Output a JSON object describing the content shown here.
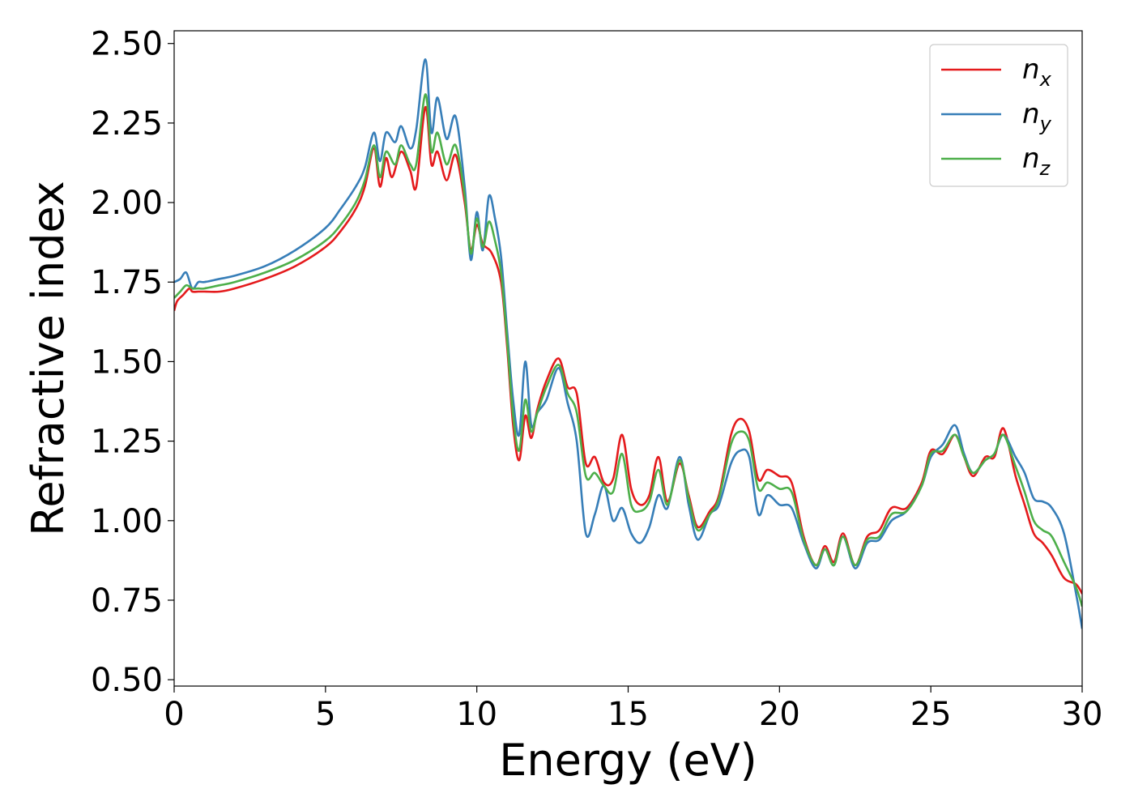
{
  "chart_data": {
    "type": "line",
    "title": "",
    "xlabel": "Energy (eV)",
    "ylabel": "Refractive index",
    "xlim": [
      0,
      30
    ],
    "ylim": [
      0.48,
      2.54
    ],
    "xticks": [
      0,
      5,
      10,
      15,
      20,
      25,
      30
    ],
    "yticks": [
      0.5,
      0.75,
      1.0,
      1.25,
      1.5,
      1.75,
      2.0,
      2.25,
      2.5
    ],
    "ytick_labels": [
      "0.50",
      "0.75",
      "1.00",
      "1.25",
      "1.50",
      "1.75",
      "2.00",
      "2.25",
      "2.50"
    ],
    "grid": false,
    "legend_position": "top-right",
    "series": [
      {
        "name": "n",
        "subscript": "x",
        "color": "#e41a1c",
        "points": [
          [
            0,
            1.66
          ],
          [
            0.1,
            1.69
          ],
          [
            0.3,
            1.71
          ],
          [
            0.5,
            1.73
          ],
          [
            0.6,
            1.72
          ],
          [
            0.8,
            1.72
          ],
          [
            1.0,
            1.72
          ],
          [
            1.5,
            1.72
          ],
          [
            2,
            1.73
          ],
          [
            3,
            1.76
          ],
          [
            4,
            1.8
          ],
          [
            5,
            1.86
          ],
          [
            5.5,
            1.91
          ],
          [
            6,
            1.98
          ],
          [
            6.3,
            2.05
          ],
          [
            6.6,
            2.17
          ],
          [
            6.8,
            2.05
          ],
          [
            7.0,
            2.14
          ],
          [
            7.2,
            2.08
          ],
          [
            7.5,
            2.16
          ],
          [
            7.8,
            2.1
          ],
          [
            8.0,
            2.05
          ],
          [
            8.3,
            2.3
          ],
          [
            8.5,
            2.12
          ],
          [
            8.7,
            2.16
          ],
          [
            9.0,
            2.07
          ],
          [
            9.3,
            2.15
          ],
          [
            9.6,
            2.0
          ],
          [
            9.8,
            1.85
          ],
          [
            10.0,
            1.93
          ],
          [
            10.2,
            1.87
          ],
          [
            10.5,
            1.84
          ],
          [
            10.8,
            1.75
          ],
          [
            11.0,
            1.55
          ],
          [
            11.2,
            1.3
          ],
          [
            11.4,
            1.19
          ],
          [
            11.6,
            1.33
          ],
          [
            11.8,
            1.26
          ],
          [
            12.0,
            1.35
          ],
          [
            12.3,
            1.44
          ],
          [
            12.7,
            1.51
          ],
          [
            13.0,
            1.42
          ],
          [
            13.3,
            1.4
          ],
          [
            13.6,
            1.18
          ],
          [
            13.9,
            1.2
          ],
          [
            14.2,
            1.12
          ],
          [
            14.5,
            1.13
          ],
          [
            14.8,
            1.27
          ],
          [
            15.1,
            1.1
          ],
          [
            15.4,
            1.05
          ],
          [
            15.7,
            1.08
          ],
          [
            16.0,
            1.2
          ],
          [
            16.3,
            1.06
          ],
          [
            16.7,
            1.18
          ],
          [
            17.0,
            1.08
          ],
          [
            17.3,
            0.98
          ],
          [
            17.7,
            1.03
          ],
          [
            18.0,
            1.08
          ],
          [
            18.4,
            1.27
          ],
          [
            18.7,
            1.32
          ],
          [
            19.0,
            1.28
          ],
          [
            19.3,
            1.13
          ],
          [
            19.6,
            1.16
          ],
          [
            20.0,
            1.14
          ],
          [
            20.4,
            1.12
          ],
          [
            20.8,
            0.95
          ],
          [
            21.2,
            0.86
          ],
          [
            21.5,
            0.92
          ],
          [
            21.8,
            0.87
          ],
          [
            22.1,
            0.96
          ],
          [
            22.5,
            0.86
          ],
          [
            22.9,
            0.95
          ],
          [
            23.3,
            0.97
          ],
          [
            23.7,
            1.04
          ],
          [
            24.2,
            1.04
          ],
          [
            24.7,
            1.12
          ],
          [
            25.0,
            1.22
          ],
          [
            25.4,
            1.21
          ],
          [
            25.8,
            1.27
          ],
          [
            26.1,
            1.2
          ],
          [
            26.4,
            1.14
          ],
          [
            26.8,
            1.2
          ],
          [
            27.1,
            1.2
          ],
          [
            27.4,
            1.29
          ],
          [
            27.8,
            1.14
          ],
          [
            28.1,
            1.05
          ],
          [
            28.4,
            0.96
          ],
          [
            28.7,
            0.93
          ],
          [
            29.0,
            0.89
          ],
          [
            29.4,
            0.82
          ],
          [
            29.8,
            0.8
          ],
          [
            30.0,
            0.77
          ]
        ]
      },
      {
        "name": "n",
        "subscript": "y",
        "color": "#377eb8",
        "points": [
          [
            0,
            1.75
          ],
          [
            0.2,
            1.76
          ],
          [
            0.4,
            1.78
          ],
          [
            0.6,
            1.73
          ],
          [
            0.8,
            1.75
          ],
          [
            1.0,
            1.75
          ],
          [
            1.5,
            1.76
          ],
          [
            2,
            1.77
          ],
          [
            3,
            1.8
          ],
          [
            4,
            1.85
          ],
          [
            5,
            1.92
          ],
          [
            5.5,
            1.98
          ],
          [
            6,
            2.05
          ],
          [
            6.3,
            2.11
          ],
          [
            6.6,
            2.22
          ],
          [
            6.8,
            2.13
          ],
          [
            7.0,
            2.22
          ],
          [
            7.3,
            2.19
          ],
          [
            7.5,
            2.24
          ],
          [
            7.8,
            2.17
          ],
          [
            8.0,
            2.23
          ],
          [
            8.3,
            2.45
          ],
          [
            8.5,
            2.22
          ],
          [
            8.7,
            2.33
          ],
          [
            9.0,
            2.2
          ],
          [
            9.3,
            2.27
          ],
          [
            9.6,
            2.05
          ],
          [
            9.8,
            1.82
          ],
          [
            10.0,
            1.97
          ],
          [
            10.2,
            1.85
          ],
          [
            10.4,
            2.02
          ],
          [
            10.6,
            1.95
          ],
          [
            10.8,
            1.83
          ],
          [
            11.0,
            1.6
          ],
          [
            11.2,
            1.38
          ],
          [
            11.4,
            1.27
          ],
          [
            11.6,
            1.5
          ],
          [
            11.8,
            1.3
          ],
          [
            12.0,
            1.34
          ],
          [
            12.3,
            1.38
          ],
          [
            12.7,
            1.48
          ],
          [
            13.0,
            1.37
          ],
          [
            13.3,
            1.25
          ],
          [
            13.6,
            0.96
          ],
          [
            13.9,
            1.02
          ],
          [
            14.2,
            1.11
          ],
          [
            14.5,
            1.0
          ],
          [
            14.8,
            1.04
          ],
          [
            15.1,
            0.96
          ],
          [
            15.4,
            0.93
          ],
          [
            15.7,
            0.98
          ],
          [
            16.0,
            1.08
          ],
          [
            16.3,
            1.04
          ],
          [
            16.7,
            1.2
          ],
          [
            17.0,
            1.05
          ],
          [
            17.3,
            0.94
          ],
          [
            17.7,
            1.02
          ],
          [
            18.0,
            1.05
          ],
          [
            18.4,
            1.18
          ],
          [
            18.7,
            1.22
          ],
          [
            19.0,
            1.2
          ],
          [
            19.3,
            1.02
          ],
          [
            19.6,
            1.08
          ],
          [
            20.0,
            1.05
          ],
          [
            20.4,
            1.04
          ],
          [
            20.8,
            0.93
          ],
          [
            21.2,
            0.85
          ],
          [
            21.5,
            0.91
          ],
          [
            21.8,
            0.86
          ],
          [
            22.1,
            0.95
          ],
          [
            22.5,
            0.85
          ],
          [
            22.9,
            0.93
          ],
          [
            23.3,
            0.94
          ],
          [
            23.7,
            1.0
          ],
          [
            24.2,
            1.03
          ],
          [
            24.7,
            1.11
          ],
          [
            25.0,
            1.2
          ],
          [
            25.4,
            1.24
          ],
          [
            25.8,
            1.3
          ],
          [
            26.1,
            1.21
          ],
          [
            26.4,
            1.15
          ],
          [
            26.8,
            1.19
          ],
          [
            27.1,
            1.21
          ],
          [
            27.4,
            1.27
          ],
          [
            27.8,
            1.2
          ],
          [
            28.1,
            1.15
          ],
          [
            28.4,
            1.07
          ],
          [
            28.7,
            1.06
          ],
          [
            29.0,
            1.04
          ],
          [
            29.4,
            0.96
          ],
          [
            29.8,
            0.77
          ],
          [
            30.0,
            0.66
          ]
        ]
      },
      {
        "name": "n",
        "subscript": "z",
        "color": "#4daf4a",
        "points": [
          [
            0,
            1.7
          ],
          [
            0.2,
            1.72
          ],
          [
            0.4,
            1.74
          ],
          [
            0.6,
            1.73
          ],
          [
            0.8,
            1.73
          ],
          [
            1.0,
            1.73
          ],
          [
            1.5,
            1.74
          ],
          [
            2,
            1.75
          ],
          [
            3,
            1.78
          ],
          [
            4,
            1.82
          ],
          [
            5,
            1.88
          ],
          [
            5.5,
            1.93
          ],
          [
            6,
            2.0
          ],
          [
            6.3,
            2.07
          ],
          [
            6.6,
            2.18
          ],
          [
            6.8,
            2.08
          ],
          [
            7.0,
            2.16
          ],
          [
            7.3,
            2.12
          ],
          [
            7.5,
            2.18
          ],
          [
            7.8,
            2.12
          ],
          [
            8.0,
            2.12
          ],
          [
            8.3,
            2.34
          ],
          [
            8.5,
            2.16
          ],
          [
            8.7,
            2.22
          ],
          [
            9.0,
            2.12
          ],
          [
            9.3,
            2.18
          ],
          [
            9.6,
            2.02
          ],
          [
            9.8,
            1.84
          ],
          [
            10.0,
            1.95
          ],
          [
            10.2,
            1.86
          ],
          [
            10.4,
            1.94
          ],
          [
            10.6,
            1.88
          ],
          [
            10.8,
            1.78
          ],
          [
            11.0,
            1.57
          ],
          [
            11.2,
            1.33
          ],
          [
            11.4,
            1.22
          ],
          [
            11.6,
            1.38
          ],
          [
            11.8,
            1.28
          ],
          [
            12.0,
            1.34
          ],
          [
            12.3,
            1.42
          ],
          [
            12.7,
            1.49
          ],
          [
            13.0,
            1.4
          ],
          [
            13.3,
            1.34
          ],
          [
            13.6,
            1.14
          ],
          [
            13.9,
            1.15
          ],
          [
            14.2,
            1.11
          ],
          [
            14.5,
            1.09
          ],
          [
            14.8,
            1.21
          ],
          [
            15.1,
            1.05
          ],
          [
            15.4,
            1.03
          ],
          [
            15.7,
            1.06
          ],
          [
            16.0,
            1.16
          ],
          [
            16.3,
            1.05
          ],
          [
            16.7,
            1.19
          ],
          [
            17.0,
            1.07
          ],
          [
            17.3,
            0.97
          ],
          [
            17.7,
            1.02
          ],
          [
            18.0,
            1.07
          ],
          [
            18.4,
            1.24
          ],
          [
            18.7,
            1.28
          ],
          [
            19.0,
            1.25
          ],
          [
            19.3,
            1.1
          ],
          [
            19.6,
            1.12
          ],
          [
            20.0,
            1.1
          ],
          [
            20.4,
            1.09
          ],
          [
            20.8,
            0.94
          ],
          [
            21.2,
            0.86
          ],
          [
            21.5,
            0.91
          ],
          [
            21.8,
            0.86
          ],
          [
            22.1,
            0.95
          ],
          [
            22.5,
            0.86
          ],
          [
            22.9,
            0.94
          ],
          [
            23.3,
            0.95
          ],
          [
            23.7,
            1.02
          ],
          [
            24.2,
            1.03
          ],
          [
            24.7,
            1.11
          ],
          [
            25.0,
            1.21
          ],
          [
            25.4,
            1.22
          ],
          [
            25.8,
            1.27
          ],
          [
            26.1,
            1.2
          ],
          [
            26.4,
            1.15
          ],
          [
            26.8,
            1.19
          ],
          [
            27.1,
            1.21
          ],
          [
            27.4,
            1.27
          ],
          [
            27.8,
            1.17
          ],
          [
            28.1,
            1.09
          ],
          [
            28.4,
            1.0
          ],
          [
            28.7,
            0.97
          ],
          [
            29.0,
            0.95
          ],
          [
            29.4,
            0.87
          ],
          [
            29.8,
            0.79
          ],
          [
            30.0,
            0.73
          ]
        ]
      }
    ]
  }
}
